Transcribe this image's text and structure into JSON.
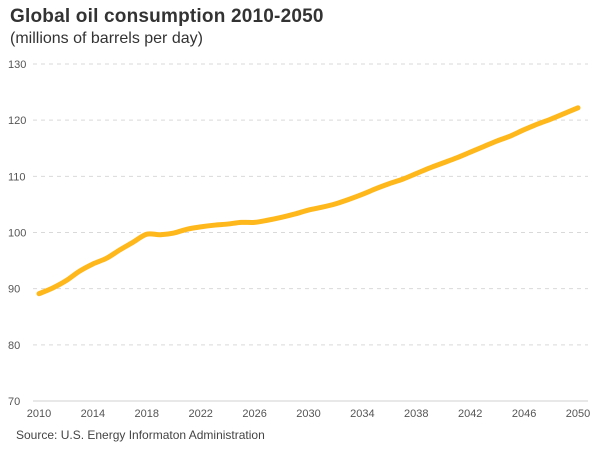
{
  "chart_data": {
    "type": "line",
    "title": "Global oil consumption 2010-2050",
    "subtitle": "(millions of barrels per day)",
    "source": "Source: U.S. Energy Informaton  Administration",
    "xlabel": "",
    "ylabel": "",
    "xlim": [
      2010,
      2050
    ],
    "ylim": [
      70,
      130
    ],
    "x_ticks": [
      "2010",
      "2014",
      "2018",
      "2022",
      "2026",
      "2030",
      "2034",
      "2038",
      "2042",
      "2046",
      "2050"
    ],
    "y_ticks": [
      "130",
      "120",
      "110",
      "100",
      "90",
      "80",
      "70"
    ],
    "grid": true,
    "legend": "none",
    "series": [
      {
        "name": "Global oil consumption",
        "color": "#FFB81C",
        "x": [
          2010,
          2011,
          2012,
          2013,
          2014,
          2015,
          2016,
          2017,
          2018,
          2019,
          2020,
          2021,
          2022,
          2023,
          2024,
          2025,
          2026,
          2027,
          2028,
          2029,
          2030,
          2031,
          2032,
          2033,
          2034,
          2035,
          2036,
          2037,
          2038,
          2039,
          2040,
          2041,
          2042,
          2043,
          2044,
          2045,
          2046,
          2047,
          2048,
          2049,
          2050
        ],
        "values": [
          89.1,
          90.1,
          91.4,
          93.1,
          94.4,
          95.4,
          96.9,
          98.3,
          99.7,
          99.6,
          99.9,
          100.6,
          101.0,
          101.3,
          101.5,
          101.8,
          101.8,
          102.2,
          102.7,
          103.3,
          104.0,
          104.5,
          105.1,
          105.9,
          106.8,
          107.8,
          108.7,
          109.5,
          110.5,
          111.5,
          112.4,
          113.3,
          114.3,
          115.3,
          116.3,
          117.2,
          118.3,
          119.3,
          120.2,
          121.2,
          122.2
        ]
      }
    ]
  }
}
